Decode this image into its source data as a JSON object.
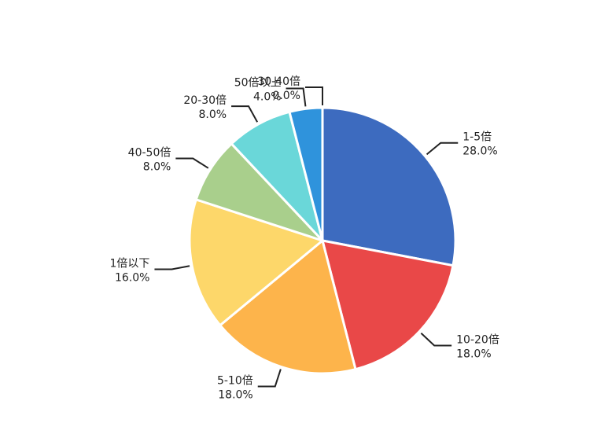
{
  "chart_data": {
    "type": "pie",
    "title": "",
    "start_angle_deg": 90,
    "direction": "clockwise",
    "slice_border": "#ffffff",
    "slices": [
      {
        "label": "1-5倍",
        "value": 28.0,
        "value_label": "28.0%",
        "color": "#3d6bbf"
      },
      {
        "label": "10-20倍",
        "value": 18.0,
        "value_label": "18.0%",
        "color": "#e94848"
      },
      {
        "label": "5-10倍",
        "value": 18.0,
        "value_label": "18.0%",
        "color": "#fdb44b"
      },
      {
        "label": "1倍以下",
        "value": 16.0,
        "value_label": "16.0%",
        "color": "#fdd76a"
      },
      {
        "label": "40-50倍",
        "value": 8.0,
        "value_label": "8.0%",
        "color": "#a9cf8c"
      },
      {
        "label": "20-30倍",
        "value": 8.0,
        "value_label": "8.0%",
        "color": "#6ad7d9"
      },
      {
        "label": "50倍以上",
        "value": 4.0,
        "value_label": "4.0%",
        "color": "#2f93dc"
      },
      {
        "label": "30-40倍",
        "value": 0.0,
        "value_label": "0.0%",
        "color": "#7d7dff"
      }
    ]
  }
}
